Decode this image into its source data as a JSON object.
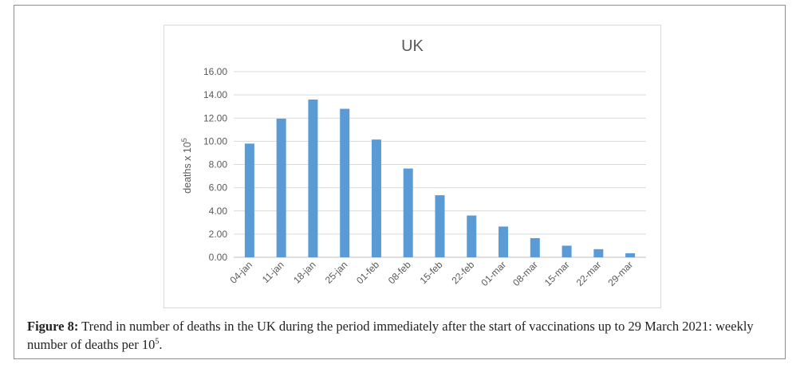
{
  "chart_data": {
    "type": "bar",
    "title": "UK",
    "xlabel": "",
    "ylabel": "deaths x 10",
    "ylabel_sup": "5",
    "categories": [
      "04-jan",
      "11-jan",
      "18-jan",
      "25-jan",
      "01-feb",
      "08-feb",
      "15-feb",
      "22-feb",
      "01-mar",
      "08-mar",
      "15-mar",
      "22-mar",
      "29-mar"
    ],
    "values": [
      9.8,
      11.95,
      13.6,
      12.8,
      10.15,
      7.65,
      5.35,
      3.6,
      2.65,
      1.65,
      1.0,
      0.7,
      0.35
    ],
    "ylim": [
      0,
      16
    ],
    "yticks": [
      "0.00",
      "2.00",
      "4.00",
      "6.00",
      "8.00",
      "10.00",
      "12.00",
      "14.00",
      "16.00"
    ],
    "grid": true,
    "bar_color": "#5b9bd5"
  },
  "caption": {
    "label": "Figure 8:",
    "text": " Trend in number of deaths in the UK during the period immediately after the start of vaccinations up to 29 March 2021: weekly number of deaths per 10",
    "sup": "5",
    "end": "."
  }
}
